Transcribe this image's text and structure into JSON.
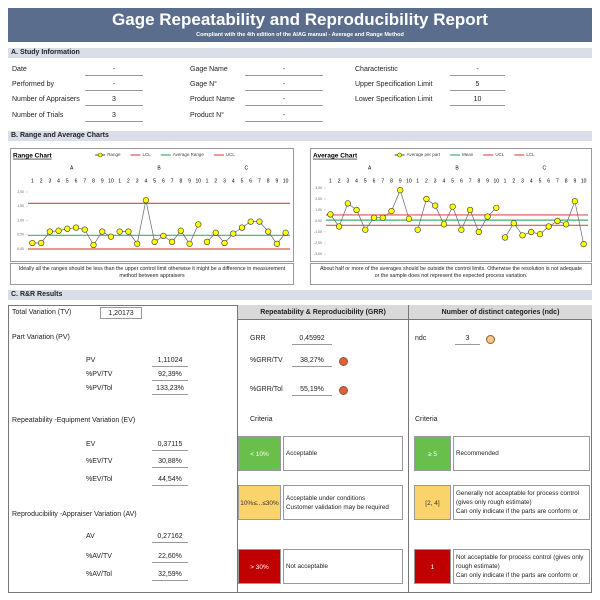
{
  "header": {
    "title": "Gage Repeatability and Reproducibility Report",
    "subtitle": "Compliant with the 4th edition of the AIAG manual - Average and Range Method"
  },
  "study": {
    "title": "A. Study Information",
    "columns": [
      [
        {
          "label": "Date",
          "value": "-"
        },
        {
          "label": "Performed by",
          "value": "-"
        },
        {
          "label": "Number of Appraisers",
          "value": "3"
        },
        {
          "label": "Number of Trials",
          "value": "3"
        }
      ],
      [
        {
          "label": "Gage Name",
          "value": "-"
        },
        {
          "label": "Gage N°",
          "value": "-"
        },
        {
          "label": "Product Name",
          "value": "-"
        },
        {
          "label": "Product N°",
          "value": "-"
        }
      ],
      [
        {
          "label": "Characteristic",
          "value": "-"
        },
        {
          "label": "Upper Specification Limit",
          "value": "5"
        },
        {
          "label": "Lower Specification Limit",
          "value": "10"
        }
      ]
    ]
  },
  "charts": {
    "title": "B. Range and Average Charts"
  },
  "chart_data": [
    {
      "type": "line",
      "title": "Range Chart",
      "groups": [
        "A",
        "B",
        "C"
      ],
      "categories": [
        "1",
        "2",
        "3",
        "4",
        "5",
        "6",
        "7",
        "8",
        "9",
        "10",
        "1",
        "2",
        "3",
        "4",
        "5",
        "6",
        "7",
        "8",
        "9",
        "10",
        "1",
        "2",
        "3",
        "4",
        "5",
        "6",
        "7",
        "8",
        "9",
        "10"
      ],
      "series": [
        {
          "name": "Range",
          "color": "#ffff00",
          "line_color": "#666666",
          "values": [
            0.21,
            0.21,
            0.61,
            0.64,
            0.71,
            0.75,
            0.68,
            0.14,
            0.61,
            0.43,
            0.61,
            0.61,
            0.18,
            1.71,
            0.25,
            0.46,
            0.25,
            0.64,
            0.18,
            0.86,
            0.25,
            0.57,
            0.21,
            0.54,
            0.75,
            0.96,
            0.96,
            0.61,
            0.18,
            0.57
          ]
        }
      ],
      "reference_lines": [
        {
          "name": "LCL",
          "color": "#e05555",
          "value": 0
        },
        {
          "name": "Average Range",
          "color": "#3cb36b",
          "value": 0.48
        },
        {
          "name": "UCL",
          "color": "#e05555",
          "value": 1.6
        }
      ],
      "ylim": [
        0,
        2
      ],
      "yticks": [
        {
          "value": 0,
          "label": "0,00"
        },
        {
          "value": 0.5,
          "label": "0,50"
        },
        {
          "value": 1,
          "label": "1,00"
        },
        {
          "value": 1.5,
          "label": "1,50"
        },
        {
          "value": 2,
          "label": "2,00"
        }
      ],
      "caption": "Ideally all the ranges should be less than the upper control limit otherwise it might be a difference in measurement method between appraisers"
    },
    {
      "type": "line",
      "title": "Average Chart",
      "groups": [
        "A",
        "B",
        "C"
      ],
      "categories": [
        "1",
        "2",
        "3",
        "4",
        "5",
        "6",
        "7",
        "8",
        "9",
        "10",
        "1",
        "2",
        "3",
        "4",
        "5",
        "6",
        "7",
        "8",
        "9",
        "10",
        "1",
        "2",
        "3",
        "4",
        "5",
        "6",
        "7",
        "8",
        "9",
        "10"
      ],
      "series": [
        {
          "name": "Average per part",
          "color": "#ffff00",
          "line_color": "#666666",
          "values": [
            0.6,
            -0.5,
            1.6,
            1.0,
            -0.8,
            0.3,
            0.3,
            0.9,
            2.8,
            0.2,
            -0.8,
            2.0,
            1.4,
            -0.3,
            1.3,
            -0.8,
            1.0,
            -1.0,
            0.4,
            1.2,
            -1.5,
            -0.2,
            -1.3,
            -1.0,
            -1.2,
            -0.5,
            0.0,
            -0.3,
            1.8,
            -2.1
          ]
        }
      ],
      "reference_lines": [
        {
          "name": "Mean",
          "color": "#3cb36b",
          "value": 0.08
        },
        {
          "name": "UCL",
          "color": "#e05555",
          "value": 0.55
        },
        {
          "name": "LCL",
          "color": "#e05555",
          "value": -0.39
        }
      ],
      "ylim": [
        -3,
        3
      ],
      "yticks": [
        {
          "value": -3,
          "label": "-3,00"
        },
        {
          "value": -2,
          "label": "-2,00"
        },
        {
          "value": -1,
          "label": "-1,00"
        },
        {
          "value": 0,
          "label": "0,00"
        },
        {
          "value": 1,
          "label": "1,00"
        },
        {
          "value": 2,
          "label": "2,00"
        },
        {
          "value": 3,
          "label": "3,00"
        }
      ],
      "caption": "About half or more of the averages should be outside the control limits. Otherwise the resolution is not adequate or the sample does not represent the expected process variation."
    }
  ],
  "results": {
    "title": "C. R&R Results",
    "total": {
      "label": "Total Variation (TV)",
      "value": "1,20173"
    },
    "groups": [
      {
        "title": "Part Variation (PV)",
        "rows": [
          {
            "label": "PV",
            "value": "1,11024"
          },
          {
            "label": "%PV/TV",
            "value": "92,39%"
          },
          {
            "label": "%PV/Tol",
            "value": "133,23%"
          }
        ]
      },
      {
        "title": "Repeatability -Equipment Variation (EV)",
        "rows": [
          {
            "label": "EV",
            "value": "0,37115"
          },
          {
            "label": "%EV/TV",
            "value": "30,88%"
          },
          {
            "label": "%EV/Tol",
            "value": "44,54%"
          }
        ]
      },
      {
        "title": "Reproducibility -Appraiser Variation (AV)",
        "rows": [
          {
            "label": "AV",
            "value": "0,27162"
          },
          {
            "label": "%AV/TV",
            "value": "22,60%"
          },
          {
            "label": "%AV/Tol",
            "value": "32,59%"
          }
        ]
      }
    ],
    "grr": {
      "title": "Repeatability & Reproducibility (GRR)",
      "rows": [
        {
          "label": "GRR",
          "value": "0,45992"
        },
        {
          "label": "%GRR/TV",
          "value": "38,27%",
          "status": "#e0603a"
        },
        {
          "label": "%GRR/Tol",
          "value": "55,19%",
          "status": "#e0603a"
        }
      ],
      "criteria_title": "Criteria",
      "criteria": [
        {
          "range": "< 10%",
          "color": "#6abf4b",
          "label_color": "#ffffff",
          "text": [
            "Acceptable"
          ]
        },
        {
          "range": "10%≤...≤30%",
          "color": "#fbd36b",
          "label_color": "#333333",
          "text": [
            "Acceptable under conditions",
            "Customer validation may be required"
          ]
        },
        {
          "range": "> 30%",
          "color": "#c00000",
          "label_color": "#ffffff",
          "text": [
            "Not acceptable"
          ]
        }
      ]
    },
    "ndc": {
      "title": "Number of distinct categories (ndc)",
      "rows": [
        {
          "label": "ndc",
          "value": "3",
          "status": "#f8c888"
        }
      ],
      "criteria_title": "Criteria",
      "criteria": [
        {
          "range": "≥ 5",
          "color": "#6abf4b",
          "label_color": "#ffffff",
          "text": [
            "Recommended"
          ]
        },
        {
          "range": "[2, 4]",
          "color": "#fbd36b",
          "label_color": "#333333",
          "text": [
            "Generally not acceptable for process control",
            "(gives only rough estimate)",
            "Can only indicate if the parts are conform or"
          ]
        },
        {
          "range": "1",
          "color": "#c00000",
          "label_color": "#ffffff",
          "text": [
            "Not acceptable for process control (gives only",
            "rough estimate)",
            "Can only indicate if the parts are conform or"
          ]
        }
      ]
    }
  }
}
